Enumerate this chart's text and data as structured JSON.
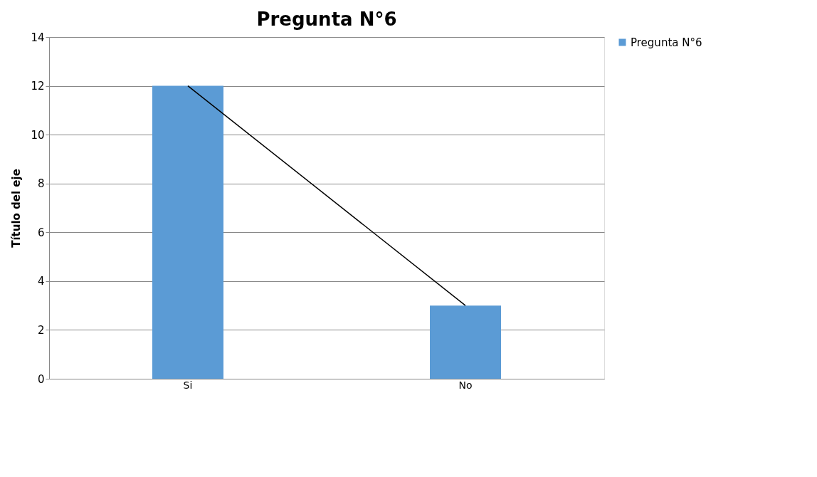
{
  "chart_data": {
    "type": "bar",
    "title": "Pregunta N°6",
    "ylabel": "Título del eje",
    "categories": [
      "Si",
      "No"
    ],
    "series": [
      {
        "name": "Pregunta N°6",
        "color": "#5b9bd5",
        "values": [
          12,
          3
        ]
      },
      {
        "type": "line",
        "color": "#000000",
        "values": [
          12,
          3
        ]
      }
    ],
    "ylim": [
      0,
      14
    ],
    "yticks": [
      0,
      2,
      4,
      6,
      8,
      10,
      12,
      14
    ],
    "grid": "y",
    "legend": "right",
    "marker": "none"
  }
}
